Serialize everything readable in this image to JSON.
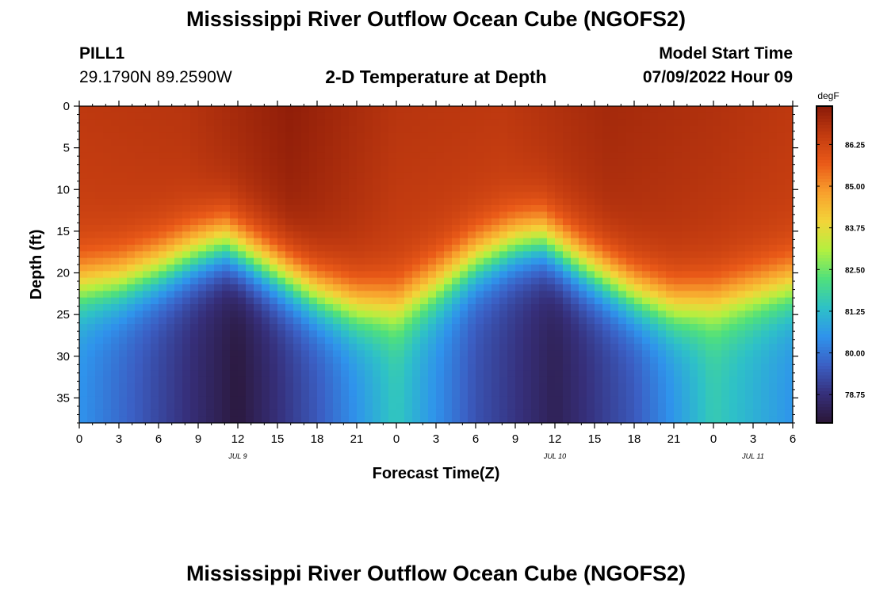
{
  "figure": {
    "title": "Mississippi River Outflow Ocean Cube (NGOFS2)",
    "title_repeat": "Mississippi River Outflow Ocean Cube (NGOFS2)",
    "station": "PILL1",
    "coordinates": "29.1790N  89.2590W",
    "subtitle": "2-D Temperature at Depth",
    "start_label": "Model Start Time",
    "start_value": "07/09/2022 Hour 09"
  },
  "chart_data": {
    "type": "heatmap",
    "title": "2-D Temperature at Depth",
    "xlabel": "Forecast Time(Z)",
    "ylabel": "Depth (ft)",
    "x_tick_labels": [
      "0",
      "3",
      "6",
      "9",
      "12",
      "15",
      "18",
      "21",
      "0",
      "3",
      "6",
      "9",
      "12",
      "15",
      "18",
      "21",
      "0",
      "3",
      "6"
    ],
    "x_range_hours": [
      0,
      54
    ],
    "date_labels": [
      {
        "label": "JUL 9",
        "hour": 12
      },
      {
        "label": "JUL 10",
        "hour": 36
      },
      {
        "label": "JUL 11",
        "hour": 51
      }
    ],
    "y_ticks": [
      0,
      5,
      10,
      15,
      20,
      25,
      30,
      35
    ],
    "y_range": [
      0,
      38
    ],
    "y_inverted": true,
    "colorbar": {
      "unit": "degF",
      "ticks": [
        "86.25",
        "85.00",
        "83.75",
        "82.50",
        "81.25",
        "80.00",
        "78.75"
      ],
      "range": [
        77.9,
        87.4
      ],
      "colors": [
        "#2a1636",
        "#362f7a",
        "#3b5fc4",
        "#2f93ec",
        "#2ec1c7",
        "#4fe07c",
        "#b3f040",
        "#f3d439",
        "#f8a02d",
        "#ea5a18",
        "#c23b10",
        "#8a1a08"
      ]
    },
    "thermocline_depth_ft": [
      {
        "hour": 0,
        "depth": 21.5
      },
      {
        "hour": 3,
        "depth": 21
      },
      {
        "hour": 6,
        "depth": 19.5
      },
      {
        "hour": 9,
        "depth": 17.5
      },
      {
        "hour": 11,
        "depth": 16.5
      },
      {
        "hour": 14,
        "depth": 19
      },
      {
        "hour": 18,
        "depth": 22.5
      },
      {
        "hour": 21,
        "depth": 24
      },
      {
        "hour": 24,
        "depth": 24
      },
      {
        "hour": 27,
        "depth": 21.5
      },
      {
        "hour": 30,
        "depth": 18.5
      },
      {
        "hour": 33,
        "depth": 16.5
      },
      {
        "hour": 35,
        "depth": 16
      },
      {
        "hour": 38,
        "depth": 19
      },
      {
        "hour": 42,
        "depth": 22.5
      },
      {
        "hour": 45,
        "depth": 24
      },
      {
        "hour": 48,
        "depth": 23.5
      },
      {
        "hour": 51,
        "depth": 22.5
      },
      {
        "hour": 54,
        "depth": 21.5
      }
    ],
    "bottom_temperature_degF": [
      {
        "hour": 0,
        "temp": 80.5
      },
      {
        "hour": 6,
        "temp": 79.2
      },
      {
        "hour": 12,
        "temp": 78.0
      },
      {
        "hour": 18,
        "temp": 79.5
      },
      {
        "hour": 24,
        "temp": 81.5
      },
      {
        "hour": 30,
        "temp": 79.4
      },
      {
        "hour": 36,
        "temp": 78.3
      },
      {
        "hour": 42,
        "temp": 79.5
      },
      {
        "hour": 48,
        "temp": 81.6
      },
      {
        "hour": 54,
        "temp": 80.5
      }
    ],
    "surface_temperature_degF": [
      {
        "hour": 0,
        "temp": 86.6
      },
      {
        "hour": 8,
        "temp": 86.7
      },
      {
        "hour": 16,
        "temp": 87.3
      },
      {
        "hour": 24,
        "temp": 86.7
      },
      {
        "hour": 32,
        "temp": 86.6
      },
      {
        "hour": 40,
        "temp": 87.0
      },
      {
        "hour": 48,
        "temp": 86.8
      },
      {
        "hour": 54,
        "temp": 86.6
      }
    ]
  }
}
